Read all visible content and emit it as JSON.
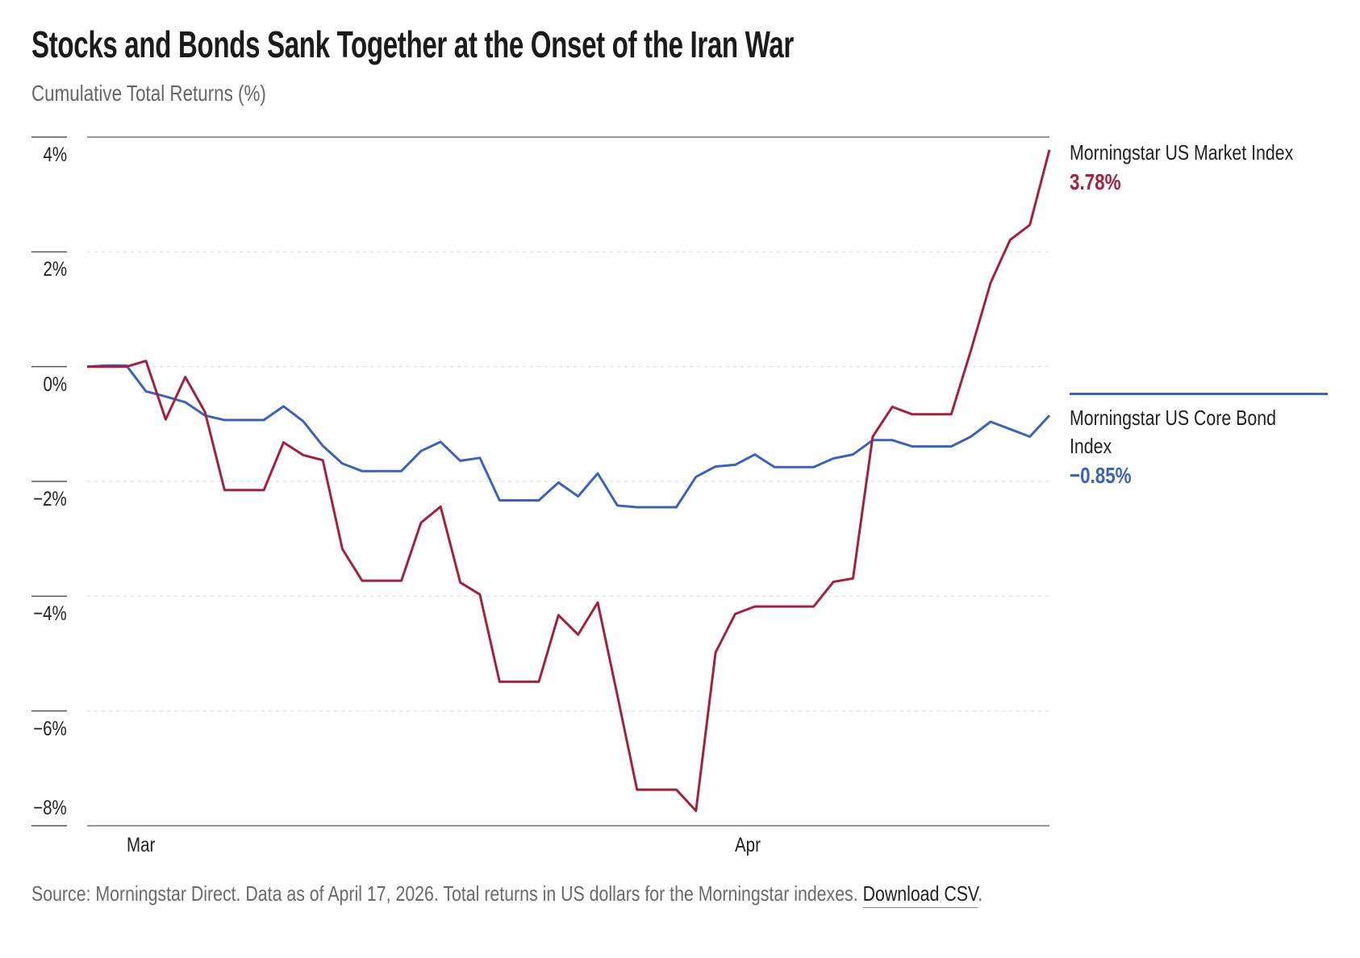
{
  "title": "Stocks and Bonds Sank Together at the Onset of the Iran War",
  "subtitle": "Cumulative Total Returns (%)",
  "footer": {
    "source_text": "Source: Morningstar Direct. Data as of April 17, 2026. Total returns in US dollars for the Morningstar indexes.",
    "download_label": "Download CSV",
    "trailing": "."
  },
  "chart_data": {
    "type": "line",
    "title": "Stocks and Bonds Sank Together at the Onset of the Iran War",
    "ylabel": "Cumulative Total Returns (%)",
    "xlabel": "",
    "ylim": [
      -8,
      4
    ],
    "yticks": [
      4,
      2,
      0,
      -2,
      -4,
      -6,
      -8
    ],
    "ytick_labels": [
      "4%",
      "2%",
      "0%",
      "−2%",
      "−4%",
      "−6%",
      "−8%"
    ],
    "xticks": [
      "2026-03-01",
      "2026-04-01"
    ],
    "xtick_labels": [
      "Mar",
      "Apr"
    ],
    "grid": true,
    "legend": "right",
    "x": [
      "2026-02-27",
      "2026-02-28",
      "2026-03-01",
      "2026-03-02",
      "2026-03-03",
      "2026-03-04",
      "2026-03-05",
      "2026-03-06",
      "2026-03-07",
      "2026-03-08",
      "2026-03-09",
      "2026-03-10",
      "2026-03-11",
      "2026-03-12",
      "2026-03-13",
      "2026-03-14",
      "2026-03-15",
      "2026-03-16",
      "2026-03-17",
      "2026-03-18",
      "2026-03-19",
      "2026-03-20",
      "2026-03-21",
      "2026-03-22",
      "2026-03-23",
      "2026-03-24",
      "2026-03-25",
      "2026-03-26",
      "2026-03-27",
      "2026-03-28",
      "2026-03-29",
      "2026-03-30",
      "2026-03-31",
      "2026-04-01",
      "2026-04-02",
      "2026-04-03",
      "2026-04-04",
      "2026-04-05",
      "2026-04-06",
      "2026-04-07",
      "2026-04-08",
      "2026-04-09",
      "2026-04-10",
      "2026-04-11",
      "2026-04-12",
      "2026-04-13",
      "2026-04-14",
      "2026-04-15",
      "2026-04-16",
      "2026-04-17"
    ],
    "series": [
      {
        "name": "Morningstar US Market Index",
        "last_label": "3.78%",
        "color": "#a6203e",
        "values": [
          0,
          0,
          0,
          0.1,
          -0.92,
          -0.18,
          -0.79,
          -2.15,
          -2.15,
          -2.15,
          -1.32,
          -1.54,
          -1.63,
          -3.18,
          -3.73,
          -3.73,
          -3.73,
          -2.72,
          -2.44,
          -3.76,
          -3.97,
          -5.49,
          -5.49,
          -5.49,
          -4.33,
          -4.67,
          -4.11,
          -5.73,
          -7.37,
          -7.37,
          -7.37,
          -7.74,
          -4.98,
          -4.31,
          -4.18,
          -4.18,
          -4.18,
          -4.18,
          -3.75,
          -3.69,
          -1.22,
          -0.7,
          -0.83,
          -0.83,
          -0.83,
          0.28,
          1.46,
          2.21,
          2.47,
          3.78
        ]
      },
      {
        "name": "Morningstar US Core Bond Index",
        "name_line1": "Morningstar US Core Bond",
        "name_line2": "Index",
        "last_label": "−0.85%",
        "color": "#3a63c0",
        "values": [
          0,
          0.02,
          0.02,
          -0.43,
          -0.52,
          -0.62,
          -0.85,
          -0.93,
          -0.93,
          -0.93,
          -0.69,
          -0.95,
          -1.38,
          -1.69,
          -1.82,
          -1.82,
          -1.82,
          -1.47,
          -1.31,
          -1.64,
          -1.59,
          -2.33,
          -2.33,
          -2.33,
          -2.02,
          -2.26,
          -1.86,
          -2.42,
          -2.45,
          -2.45,
          -2.45,
          -1.92,
          -1.74,
          -1.71,
          -1.53,
          -1.75,
          -1.75,
          -1.75,
          -1.6,
          -1.53,
          -1.28,
          -1.28,
          -1.39,
          -1.39,
          -1.39,
          -1.22,
          -0.96,
          -1.09,
          -1.22,
          -0.85
        ]
      }
    ]
  }
}
